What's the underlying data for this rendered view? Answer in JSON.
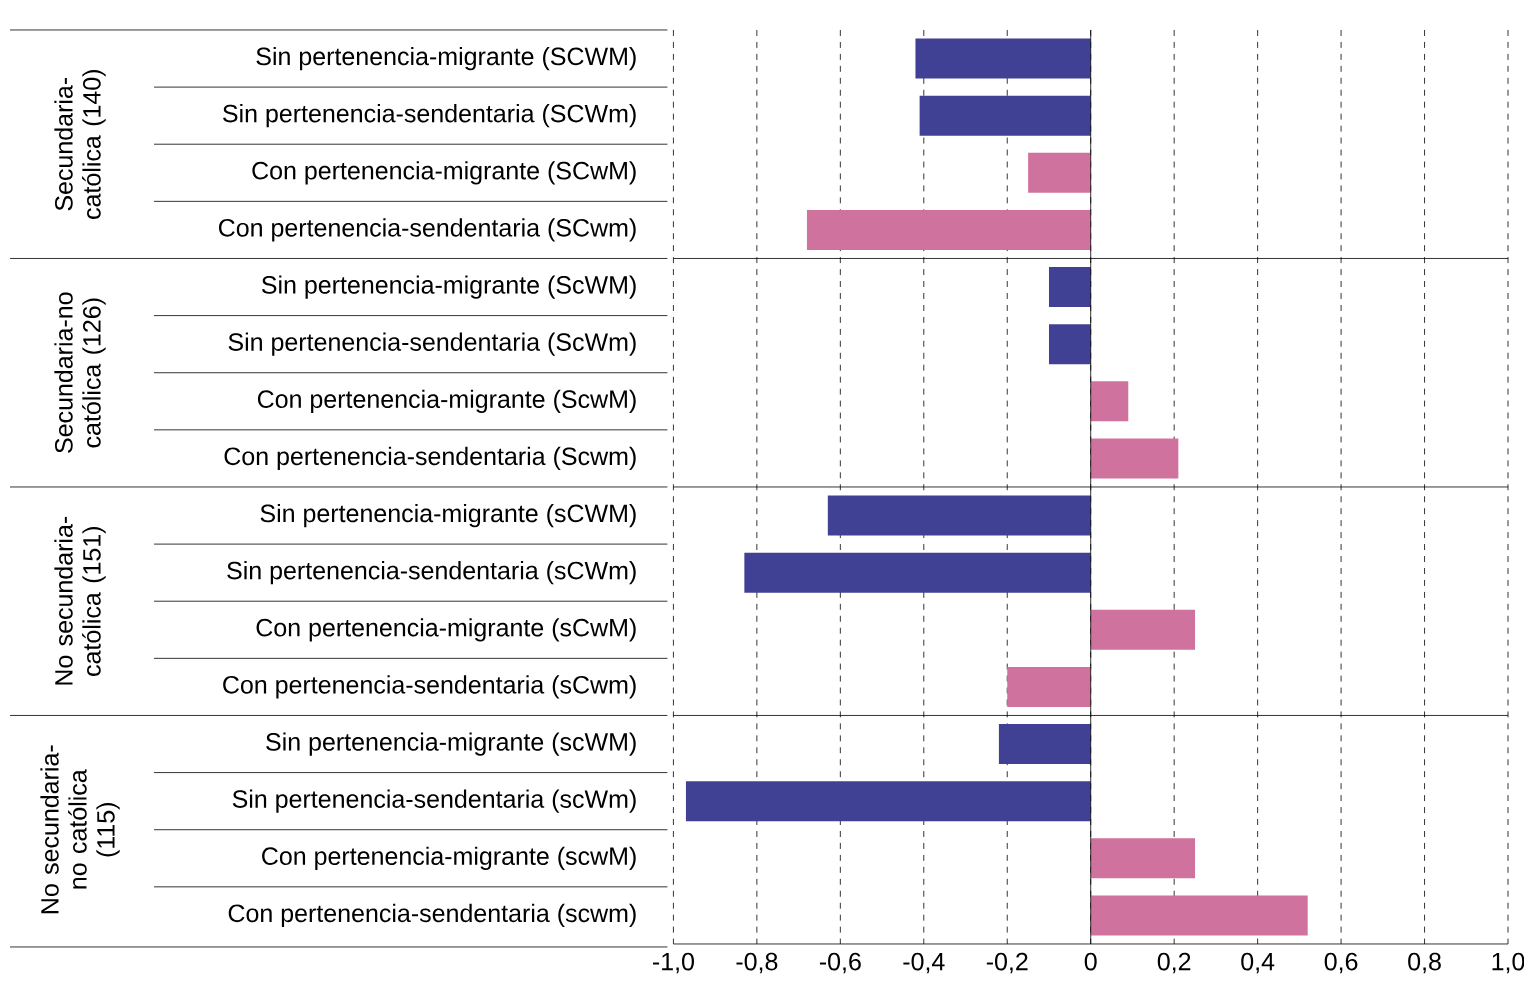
{
  "chart_data": {
    "type": "bar",
    "orientation": "horizontal",
    "categories": [
      "Sin pertenencia-migrante (SCWM)",
      "Sin pertenencia-sendentaria (SCWm)",
      "Con pertenencia-migrante (SCwM)",
      "Con pertenencia-sendentaria (SCwm)",
      "Sin pertenencia-migrante (ScWM)",
      "Sin pertenencia-sendentaria (ScWm)",
      "Con pertenencia-migrante (ScwM)",
      "Con pertenencia-sendentaria (Scwm)",
      "Sin pertenencia-migrante (sCWM)",
      "Sin pertenencia-sendentaria (sCWm)",
      "Con pertenencia-migrante (sCwM)",
      "Con pertenencia-sendentaria (sCwm)",
      "Sin pertenencia-migrante (scWM)",
      "Sin pertenencia-sendentaria (scWm)",
      "Con pertenencia-migrante (scwM)",
      "Con pertenencia-sendentaria (scwm)"
    ],
    "values": [
      -0.42,
      -0.41,
      -0.15,
      -0.68,
      -0.1,
      -0.1,
      0.09,
      0.21,
      -0.63,
      -0.83,
      0.25,
      -0.2,
      -0.22,
      -0.97,
      0.25,
      0.52
    ],
    "colors": [
      "#404094",
      "#404094",
      "#cf729d",
      "#cf729d",
      "#404094",
      "#404094",
      "#cf729d",
      "#cf729d",
      "#404094",
      "#404094",
      "#cf729d",
      "#cf729d",
      "#404094",
      "#404094",
      "#cf729d",
      "#cf729d"
    ],
    "xlim": [
      -1,
      1
    ],
    "xticks": [
      {
        "value": -1,
        "label": "-1,0"
      },
      {
        "value": -0.8,
        "label": "-0,8"
      },
      {
        "value": -0.6,
        "label": "-0,6"
      },
      {
        "value": -0.4,
        "label": "-0,4"
      },
      {
        "value": -0.2,
        "label": "-0,2"
      },
      0,
      {
        "value": 0.2,
        "label": "0,2"
      },
      {
        "value": 0.4,
        "label": "0,4"
      },
      {
        "value": 0.6,
        "label": "0,6"
      },
      {
        "value": 0.8,
        "label": "0,8"
      },
      {
        "value": 1,
        "label": "1,0"
      }
    ],
    "grid": "x",
    "annotations": [
      "Secundaria-católica (140)",
      "Secundaria-no católica (126)",
      "No secundaria-católica (151)",
      "No secundaria-no católica (115)"
    ]
  }
}
